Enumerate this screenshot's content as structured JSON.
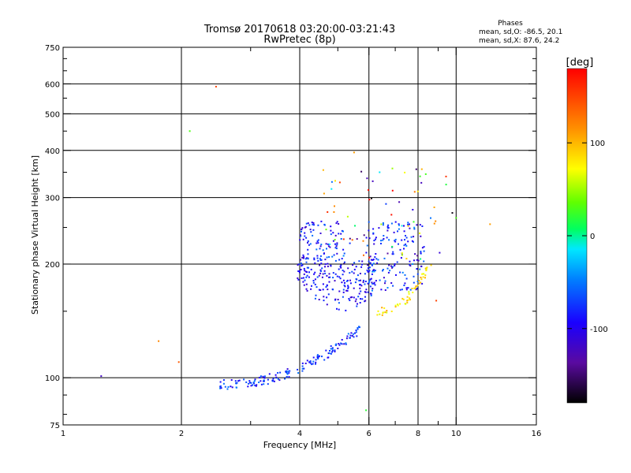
{
  "chart_data": {
    "type": "scatter",
    "title": "Tromsø 20170618 03:20:00-03:21:43",
    "subtitle": "RwPretec (8p)",
    "phase_info": {
      "heading": "Phases",
      "line1": "mean, sd,O: -86.5, 20.1",
      "line2": "mean, sd,X:  87.6, 24.2"
    },
    "xlabel": "Frequency [MHz]",
    "ylabel": "Stationary phase Virtual Height [km]",
    "xscale": "log",
    "yscale": "log",
    "xlim": [
      1,
      16
    ],
    "ylim": [
      75,
      750
    ],
    "x_ticks": [
      1,
      2,
      4,
      6,
      8,
      10,
      16
    ],
    "x_tick_labels": [
      "1",
      "2",
      "4",
      "6",
      "8",
      "10",
      "16"
    ],
    "x_minor_ticks": [
      3,
      5,
      7,
      9
    ],
    "y_ticks": [
      75,
      100,
      200,
      300,
      400,
      500,
      600,
      750
    ],
    "y_tick_labels": [
      "75",
      "100",
      "200",
      "300",
      "400",
      "500",
      "600",
      "750"
    ],
    "grid_x": [
      2,
      4,
      6,
      8,
      10
    ],
    "grid_y": [
      100,
      200,
      300,
      400,
      500,
      600
    ],
    "colorbar": {
      "label": "[deg]",
      "range": [
        -180,
        180
      ],
      "ticks": [
        100,
        0,
        -100
      ],
      "tick_labels": [
        "100",
        "0",
        "-100"
      ]
    },
    "features": [
      {
        "name": "lower-trace",
        "n": 160,
        "f": [
          2.5,
          5.7
        ],
        "h": [
          96,
          135
        ],
        "shape": "rising-curve",
        "phase": [
          -110,
          -45
        ]
      },
      {
        "name": "mid-cusp",
        "n": 210,
        "f": [
          3.95,
          6.3
        ],
        "h": [
          150,
          215
        ],
        "shape": "cusp",
        "phase": [
          -120,
          -60
        ]
      },
      {
        "name": "upper-left-blob",
        "n": 90,
        "f": [
          4.0,
          5.2
        ],
        "h": [
          205,
          260
        ],
        "shape": "cloud",
        "phase": [
          -120,
          -50
        ]
      },
      {
        "name": "right-cloud",
        "n": 150,
        "f": [
          5.9,
          8.3
        ],
        "h": [
          170,
          260
        ],
        "shape": "cloud",
        "phase": [
          -120,
          -40
        ]
      },
      {
        "name": "x-trace",
        "n": 55,
        "f": [
          6.3,
          8.7
        ],
        "h": [
          150,
          205
        ],
        "shape": "rising-curve",
        "phase": [
          60,
          110
        ]
      },
      {
        "name": "scattered-points",
        "n": 70,
        "f": [
          4.5,
          9.8
        ],
        "h": [
          200,
          360
        ],
        "shape": "cloud",
        "phase": [
          -180,
          180
        ]
      }
    ],
    "isolated_points": [
      {
        "f": 1.25,
        "h": 101,
        "phase": -120
      },
      {
        "f": 1.75,
        "h": 125,
        "phase": 120
      },
      {
        "f": 1.97,
        "h": 110,
        "phase": 140
      },
      {
        "f": 2.1,
        "h": 450,
        "phase": 30
      },
      {
        "f": 2.45,
        "h": 590,
        "phase": 150
      },
      {
        "f": 5.9,
        "h": 82,
        "phase": 20
      },
      {
        "f": 8.9,
        "h": 160,
        "phase": 150
      },
      {
        "f": 10.0,
        "h": 265,
        "phase": 30
      },
      {
        "f": 12.2,
        "h": 255,
        "phase": 110
      },
      {
        "f": 5.5,
        "h": 395,
        "phase": 110
      }
    ]
  }
}
